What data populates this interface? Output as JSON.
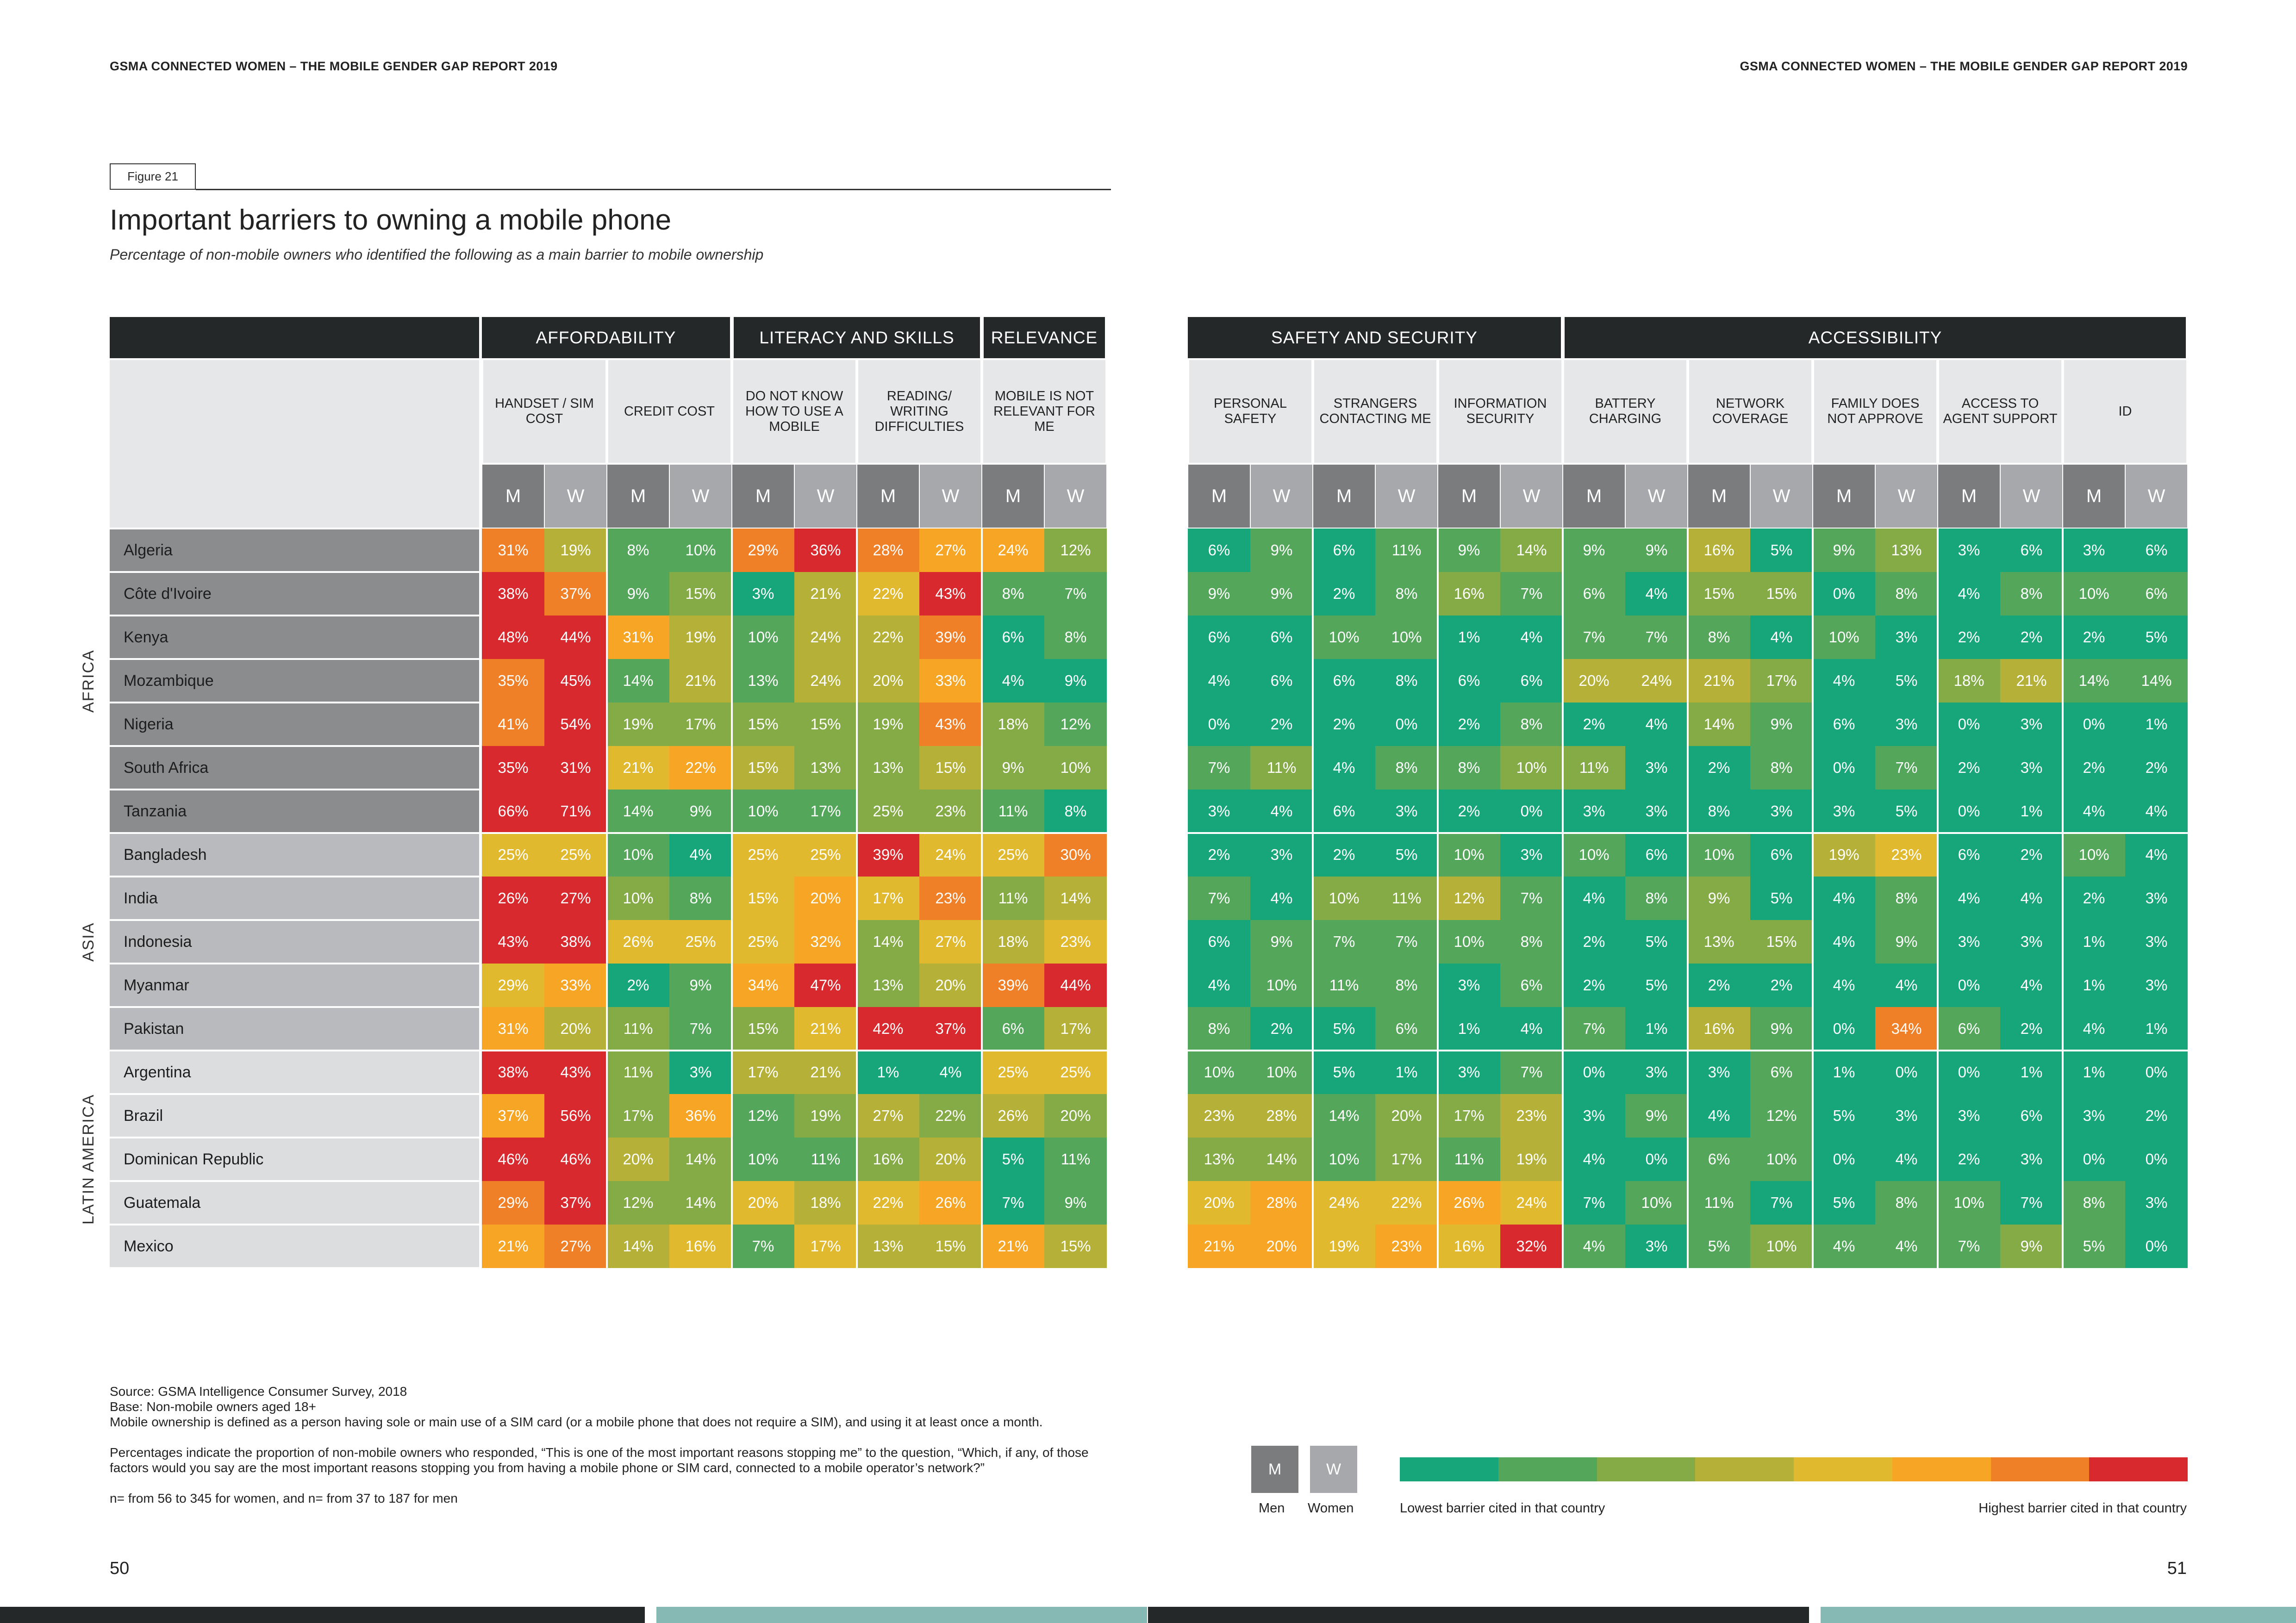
{
  "header": {
    "left": "GSMA CONNECTED WOMEN – THE MOBILE GENDER GAP REPORT 2019",
    "right": "GSMA CONNECTED WOMEN – THE MOBILE GENDER GAP REPORT 2019"
  },
  "figure_label": "Figure 21",
  "colors": {
    "scale": [
      "#17a57a",
      "#53a65a",
      "#85ab46",
      "#b5b138",
      "#e1b92e",
      "#f6a524",
      "#f08028",
      "#d8292f"
    ],
    "men_box": "#7a7c7e",
    "women_box": "#a6a8ab",
    "header_dark": "#252829"
  },
  "chart_data": {
    "type": "heatmap",
    "title": "Important barriers to owning a mobile phone",
    "subtitle": "Percentage of non-mobile owners who identified the following as a main barrier to mobile ownership",
    "groups": [
      {
        "name": "AFFORDABILITY",
        "barriers": [
          0,
          1
        ]
      },
      {
        "name": "LITERACY AND SKILLS",
        "barriers": [
          2,
          3
        ]
      },
      {
        "name": "RELEVANCE",
        "barriers": [
          4
        ]
      },
      {
        "name": "SAFETY AND SECURITY",
        "barriers": [
          5,
          6,
          7
        ]
      },
      {
        "name": "ACCESSIBILITY",
        "barriers": [
          8,
          9,
          10,
          11,
          12
        ]
      }
    ],
    "barriers": [
      "HANDSET / SIM COST",
      "CREDIT COST",
      "DO NOT KNOW HOW TO USE A MOBILE",
      "READING/ WRITING DIFFICULTIES",
      "MOBILE IS NOT RELEVANT FOR ME",
      "PERSONAL SAFETY",
      "STRANGERS CONTACTING ME",
      "INFORMATION SECURITY",
      "BATTERY CHARGING",
      "NETWORK COVERAGE",
      "FAMILY DOES NOT APPROVE",
      "ACCESS TO AGENT SUPPORT",
      "ID"
    ],
    "sex_labels": [
      "M",
      "W"
    ],
    "regions": [
      {
        "name": "AFRICA",
        "countries": [
          "Algeria",
          "Côte d'Ivoire",
          "Kenya",
          "Mozambique",
          "Nigeria",
          "South Africa",
          "Tanzania"
        ]
      },
      {
        "name": "ASIA",
        "countries": [
          "Bangladesh",
          "India",
          "Indonesia",
          "Myanmar",
          "Pakistan"
        ]
      },
      {
        "name": "LATIN AMERICA",
        "countries": [
          "Argentina",
          "Brazil",
          "Dominican Republic",
          "Guatemala",
          "Mexico"
        ]
      }
    ],
    "values": [
      [
        31,
        19,
        8,
        10,
        29,
        36,
        28,
        27,
        24,
        12,
        6,
        9,
        6,
        11,
        9,
        14,
        9,
        9,
        16,
        5,
        9,
        13,
        3,
        6,
        3,
        6
      ],
      [
        38,
        37,
        9,
        15,
        3,
        21,
        22,
        43,
        8,
        7,
        9,
        9,
        2,
        8,
        16,
        7,
        6,
        4,
        15,
        15,
        0,
        8,
        4,
        8,
        10,
        6
      ],
      [
        48,
        44,
        31,
        19,
        10,
        24,
        22,
        39,
        6,
        8,
        6,
        6,
        10,
        10,
        1,
        4,
        7,
        7,
        8,
        4,
        10,
        3,
        2,
        2,
        2,
        5
      ],
      [
        35,
        45,
        14,
        21,
        13,
        24,
        20,
        33,
        4,
        9,
        4,
        6,
        6,
        8,
        6,
        6,
        20,
        24,
        21,
        17,
        4,
        5,
        18,
        21,
        14,
        14
      ],
      [
        41,
        54,
        19,
        17,
        15,
        15,
        19,
        43,
        18,
        12,
        0,
        2,
        2,
        0,
        2,
        8,
        2,
        4,
        14,
        9,
        6,
        3,
        0,
        3,
        0,
        1
      ],
      [
        35,
        31,
        21,
        22,
        15,
        13,
        13,
        15,
        9,
        10,
        7,
        11,
        4,
        8,
        8,
        10,
        11,
        3,
        2,
        8,
        0,
        7,
        2,
        3,
        2,
        2
      ],
      [
        66,
        71,
        14,
        9,
        10,
        17,
        25,
        23,
        11,
        8,
        3,
        4,
        6,
        3,
        2,
        0,
        3,
        3,
        8,
        3,
        3,
        5,
        0,
        1,
        4,
        4
      ],
      [
        25,
        25,
        10,
        4,
        25,
        25,
        39,
        24,
        25,
        30,
        2,
        3,
        2,
        5,
        10,
        3,
        10,
        6,
        10,
        6,
        19,
        23,
        6,
        2,
        10,
        4
      ],
      [
        26,
        27,
        10,
        8,
        15,
        20,
        17,
        23,
        11,
        14,
        7,
        4,
        10,
        11,
        12,
        7,
        4,
        8,
        9,
        5,
        4,
        8,
        4,
        4,
        2,
        3
      ],
      [
        43,
        38,
        26,
        25,
        25,
        32,
        14,
        27,
        18,
        23,
        6,
        9,
        7,
        7,
        10,
        8,
        2,
        5,
        13,
        15,
        4,
        9,
        3,
        3,
        1,
        3
      ],
      [
        29,
        33,
        2,
        9,
        34,
        47,
        13,
        20,
        39,
        44,
        4,
        10,
        11,
        8,
        3,
        6,
        2,
        5,
        2,
        2,
        4,
        4,
        0,
        4,
        1,
        3
      ],
      [
        31,
        20,
        11,
        7,
        15,
        21,
        42,
        37,
        6,
        17,
        8,
        2,
        5,
        6,
        1,
        4,
        7,
        1,
        16,
        9,
        0,
        34,
        6,
        2,
        4,
        1
      ],
      [
        38,
        43,
        11,
        3,
        17,
        21,
        1,
        4,
        25,
        25,
        10,
        10,
        5,
        1,
        3,
        7,
        0,
        3,
        3,
        6,
        1,
        0,
        0,
        1,
        1,
        0
      ],
      [
        37,
        56,
        17,
        36,
        12,
        19,
        27,
        22,
        26,
        20,
        23,
        28,
        14,
        20,
        17,
        23,
        3,
        9,
        4,
        12,
        5,
        3,
        3,
        6,
        3,
        2
      ],
      [
        46,
        46,
        20,
        14,
        10,
        11,
        16,
        20,
        5,
        11,
        13,
        14,
        10,
        17,
        11,
        19,
        4,
        0,
        6,
        10,
        0,
        4,
        2,
        3,
        0,
        0
      ],
      [
        29,
        37,
        12,
        14,
        20,
        18,
        22,
        26,
        7,
        9,
        20,
        28,
        24,
        22,
        26,
        24,
        7,
        10,
        11,
        7,
        5,
        8,
        10,
        7,
        8,
        3
      ],
      [
        21,
        27,
        14,
        16,
        7,
        17,
        13,
        15,
        21,
        15,
        21,
        20,
        19,
        23,
        16,
        32,
        4,
        3,
        5,
        10,
        4,
        4,
        7,
        9,
        5,
        0
      ]
    ],
    "color_encoding": "Colour is relative within each country: lowest to highest barrier cited in that country"
  },
  "notes": [
    "Source: GSMA Intelligence Consumer Survey, 2018",
    "Base: Non-mobile owners aged 18+",
    "Mobile ownership is defined as a person having sole or main use of a SIM card (or a mobile phone that does not require a SIM), and using it at least once a month.",
    "Percentages indicate the proportion of non-mobile owners who responded, “This is one of the most important reasons stopping me” to the question, “Which, if any, of those factors would you say are the most important reasons stopping you from having a mobile phone or SIM card, connected to a mobile operator’s network?”",
    "n= from 56 to 345 for women, and n= from 37 to 187 for men"
  ],
  "legend": {
    "men_box": "M",
    "women_box": "W",
    "men": "Men",
    "women": "Women",
    "low": "Lowest barrier cited in that country",
    "high": "Highest barrier cited in that country"
  },
  "pages": {
    "left": "50",
    "right": "51"
  }
}
